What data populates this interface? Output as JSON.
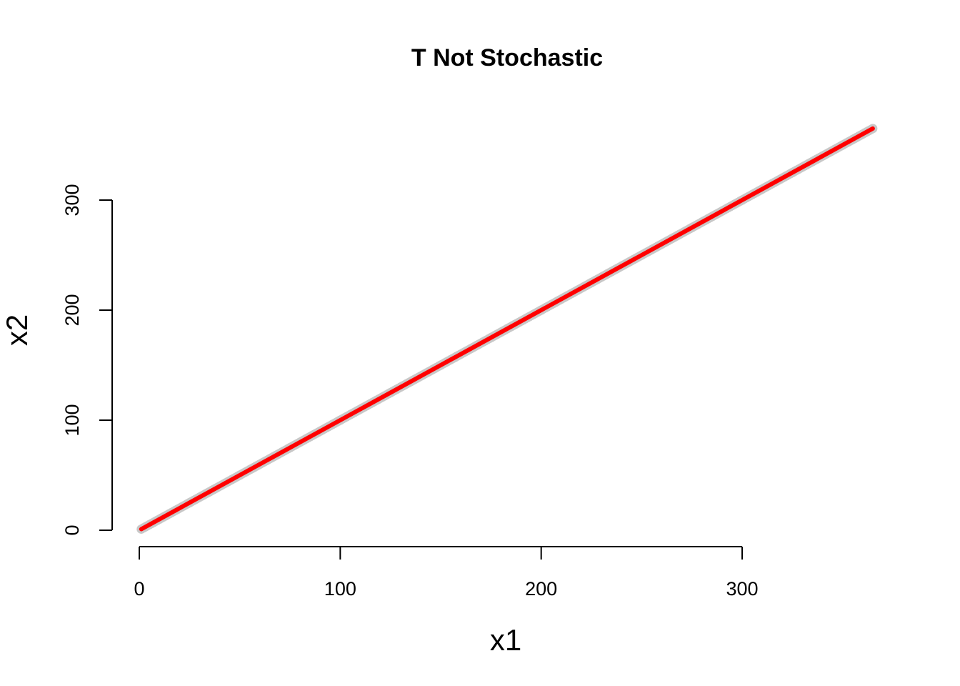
{
  "chart_data": {
    "type": "line",
    "title": "T Not Stochastic",
    "xlabel": "x1",
    "ylabel": "x2",
    "x_ticks": [
      0,
      100,
      200,
      300
    ],
    "y_ticks": [
      0,
      100,
      200,
      300
    ],
    "x_tick_labels": [
      "0",
      "100",
      "200",
      "300"
    ],
    "y_tick_labels": [
      "0",
      "100",
      "200",
      "300"
    ],
    "xlim": [
      0,
      365
    ],
    "ylim": [
      0,
      365
    ],
    "grid": false,
    "series": [
      {
        "style": "points",
        "color": "#c8c8c8",
        "x": [
          1,
          25,
          50,
          75,
          100,
          125,
          150,
          175,
          200,
          225,
          250,
          275,
          300,
          325,
          350,
          365
        ],
        "y": [
          1,
          25,
          50,
          75,
          100,
          125,
          150,
          175,
          200,
          225,
          250,
          275,
          300,
          325,
          350,
          365
        ]
      },
      {
        "style": "line",
        "color": "#ff0000",
        "x": [
          1,
          365
        ],
        "y": [
          1,
          365
        ]
      }
    ]
  }
}
